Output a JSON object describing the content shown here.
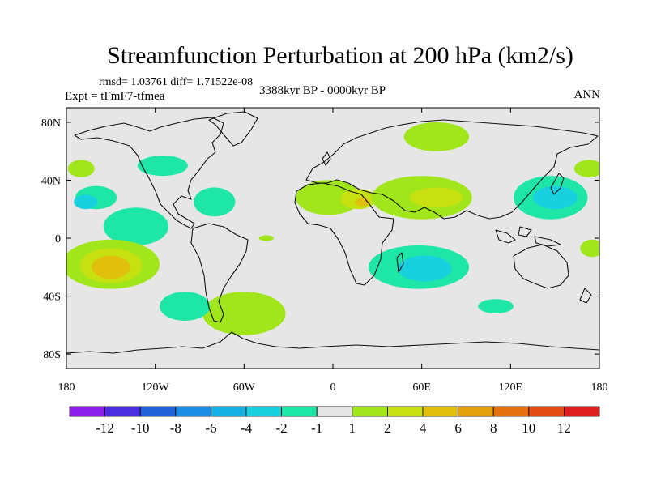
{
  "chart_data": {
    "type": "heatmap",
    "title": "Streamfunction Perturbation at 200 hPa (km2/s)",
    "stats": "rmsd= 1.03761 diff= 1.71522e-08",
    "left_label": "Expt = tFmF7-tfmea",
    "center_label": "3388kyr BP - 0000kyr BP",
    "right_label": "ANN",
    "xlim": [
      -180,
      180
    ],
    "ylim": [
      -90,
      90
    ],
    "x_ticks": [
      {
        "value": -180,
        "label": "180"
      },
      {
        "value": -120,
        "label": "120W"
      },
      {
        "value": -60,
        "label": "60W"
      },
      {
        "value": 0,
        "label": "0"
      },
      {
        "value": 60,
        "label": "60E"
      },
      {
        "value": 120,
        "label": "120E"
      },
      {
        "value": 180,
        "label": "180"
      }
    ],
    "y_ticks": [
      {
        "value": 80,
        "label": "80N"
      },
      {
        "value": 40,
        "label": "40N"
      },
      {
        "value": 0,
        "label": "0"
      },
      {
        "value": -40,
        "label": "40S"
      },
      {
        "value": -80,
        "label": "80S"
      }
    ],
    "colorbar": {
      "colors": [
        "#8b1ee8",
        "#4b2ee0",
        "#2262d8",
        "#1a8ce4",
        "#16b0e4",
        "#18d0de",
        "#1ee6a6",
        "#e6e6e6",
        "#a0e61a",
        "#c6e010",
        "#e0c00c",
        "#e4a00c",
        "#e47010",
        "#e44c16",
        "#e02020"
      ],
      "labels": [
        "-12",
        "-10",
        "-8",
        "-6",
        "-4",
        "-2",
        "-1",
        "1",
        "2",
        "4",
        "6",
        "8",
        "10",
        "12"
      ]
    },
    "anomalies": [
      {
        "lon": -170,
        "lat": 48,
        "rx": 9,
        "ry": 6,
        "level": 1
      },
      {
        "lon": -160,
        "lat": 28,
        "rx": 14,
        "ry": 8,
        "level": -1
      },
      {
        "lon": -167,
        "lat": 25,
        "rx": 8,
        "ry": 5,
        "level": -2
      },
      {
        "lon": -115,
        "lat": 50,
        "rx": 17,
        "ry": 7,
        "level": -1
      },
      {
        "lon": -133,
        "lat": 8,
        "rx": 22,
        "ry": 13,
        "level": -1
      },
      {
        "lon": -80,
        "lat": 25,
        "rx": 14,
        "ry": 10,
        "level": -1
      },
      {
        "lon": -150,
        "lat": -18,
        "rx": 33,
        "ry": 17,
        "level": 1
      },
      {
        "lon": -150,
        "lat": -19,
        "rx": 21,
        "ry": 12,
        "level": 2
      },
      {
        "lon": -150,
        "lat": -20,
        "rx": 13,
        "ry": 8,
        "level": 4
      },
      {
        "lon": -60,
        "lat": -52,
        "rx": 28,
        "ry": 15,
        "level": 1
      },
      {
        "lon": -100,
        "lat": -47,
        "rx": 17,
        "ry": 10,
        "level": -1
      },
      {
        "lon": -45,
        "lat": 0,
        "rx": 5,
        "ry": 2,
        "level": 1
      },
      {
        "lon": -3,
        "lat": 28,
        "rx": 22,
        "ry": 12,
        "level": 1
      },
      {
        "lon": 17,
        "lat": 27,
        "rx": 12,
        "ry": 7,
        "level": 2
      },
      {
        "lon": 20,
        "lat": 25,
        "rx": 5,
        "ry": 3,
        "level": 4
      },
      {
        "lon": 60,
        "lat": 28,
        "rx": 34,
        "ry": 15,
        "level": 1
      },
      {
        "lon": 70,
        "lat": 28,
        "rx": 18,
        "ry": 7,
        "level": 2
      },
      {
        "lon": 70,
        "lat": 70,
        "rx": 22,
        "ry": 10,
        "level": 1
      },
      {
        "lon": 58,
        "lat": -20,
        "rx": 34,
        "ry": 15,
        "level": -1
      },
      {
        "lon": 62,
        "lat": -21,
        "rx": 18,
        "ry": 9,
        "level": -2
      },
      {
        "lon": 110,
        "lat": -47,
        "rx": 12,
        "ry": 5,
        "level": -1
      },
      {
        "lon": 147,
        "lat": 28,
        "rx": 25,
        "ry": 15,
        "level": -1
      },
      {
        "lon": 150,
        "lat": 28,
        "rx": 15,
        "ry": 8,
        "level": -2
      },
      {
        "lon": 173,
        "lat": 48,
        "rx": 10,
        "ry": 6,
        "level": 1
      },
      {
        "lon": 175,
        "lat": -7,
        "rx": 8,
        "ry": 6,
        "level": 1
      }
    ]
  }
}
